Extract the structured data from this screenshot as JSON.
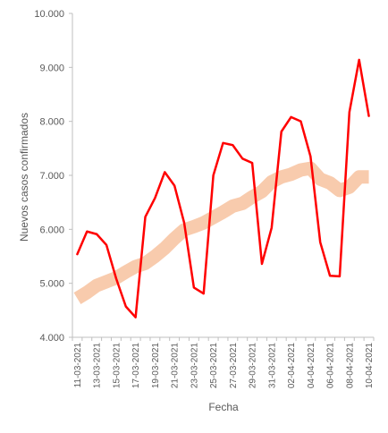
{
  "chart_data": {
    "type": "line",
    "title": "",
    "xlabel": "Fecha",
    "ylabel": "Nuevos casos confirmados",
    "ylim": [
      4000,
      10000
    ],
    "y_ticks": [
      4000,
      5000,
      6000,
      7000,
      8000,
      9000,
      10000
    ],
    "y_tick_labels": [
      "4.000",
      "5.000",
      "6.000",
      "7.000",
      "8.000",
      "9.000",
      "10.000"
    ],
    "grid": false,
    "legend": "none",
    "x": [
      "11-03-2021",
      "12-03-2021",
      "13-03-2021",
      "14-03-2021",
      "15-03-2021",
      "16-03-2021",
      "17-03-2021",
      "18-03-2021",
      "19-03-2021",
      "20-03-2021",
      "21-03-2021",
      "22-03-2021",
      "23-03-2021",
      "24-03-2021",
      "25-03-2021",
      "26-03-2021",
      "27-03-2021",
      "28-03-2021",
      "29-03-2021",
      "30-03-2021",
      "31-03-2021",
      "01-04-2021",
      "02-04-2021",
      "03-04-2021",
      "04-04-2021",
      "05-04-2021",
      "06-04-2021",
      "07-04-2021",
      "08-04-2021",
      "09-04-2021",
      "10-04-2021"
    ],
    "x_tick_labels": [
      "11-03-2021",
      "13-03-2021",
      "15-03-2021",
      "17-03-2021",
      "19-03-2021",
      "21-03-2021",
      "23-03-2021",
      "25-03-2021",
      "27-03-2021",
      "29-03-2021",
      "31-03-2021",
      "02-04-2021",
      "04-04-2021",
      "06-04-2021",
      "08-04-2021",
      "10-04-2021"
    ],
    "series": [
      {
        "color": "#ff0000",
        "style": "line",
        "values": [
          5540,
          5960,
          5910,
          5710,
          5090,
          4570,
          4370,
          6230,
          6580,
          7060,
          6810,
          6120,
          4920,
          4810,
          7000,
          7600,
          7560,
          7310,
          7230,
          5360,
          6030,
          7810,
          8080,
          8000,
          7350,
          5760,
          5140,
          5130,
          8170,
          9140,
          8100
        ]
      },
      {
        "color": "#f8cbad",
        "style": "band",
        "values": [
          4720,
          4830,
          4960,
          5030,
          5100,
          5210,
          5310,
          5370,
          5500,
          5650,
          5830,
          5990,
          6050,
          6120,
          6220,
          6320,
          6430,
          6480,
          6600,
          6700,
          6880,
          6970,
          7020,
          7100,
          7130,
          6930,
          6860,
          6720,
          6780,
          6970,
          6970
        ]
      }
    ]
  }
}
